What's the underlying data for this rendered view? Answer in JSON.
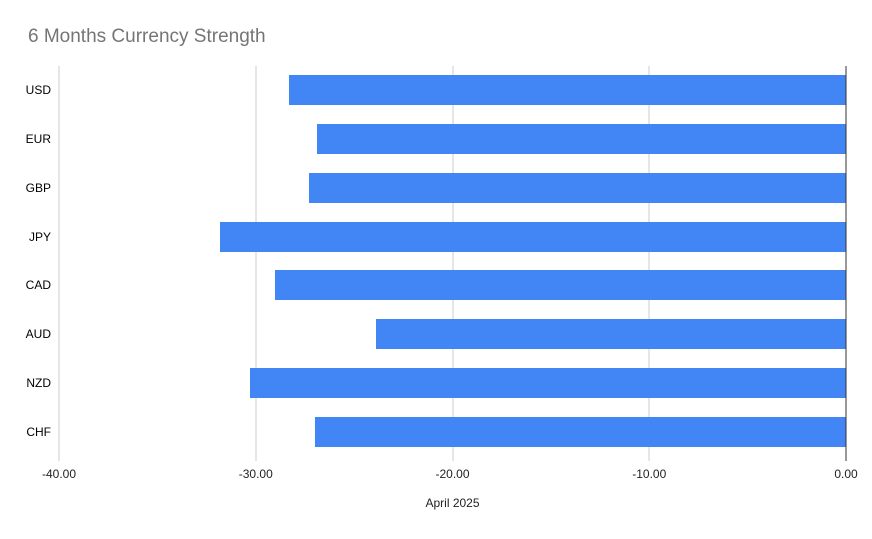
{
  "title": "6 Months Currency Strength",
  "colors": {
    "bar": "#4285f4",
    "title_text": "#757575",
    "gridline": "#cccccc",
    "zero_axis_line": "#333333",
    "axis_text": "#222222",
    "background": "#ffffff"
  },
  "chart_data": {
    "type": "bar",
    "orientation": "horizontal",
    "title": "6 Months Currency Strength",
    "categories": [
      "USD",
      "EUR",
      "GBP",
      "JPY",
      "CAD",
      "AUD",
      "NZD",
      "CHF"
    ],
    "values": [
      -28.3,
      -26.9,
      -27.3,
      -31.8,
      -29.0,
      -23.9,
      -30.3,
      -27.0
    ],
    "xlabel": "April 2025",
    "ylabel": "",
    "xlim": [
      -40,
      0
    ],
    "x_ticks": [
      -40,
      -30,
      -20,
      -10,
      0
    ],
    "x_tick_labels": [
      "-40.00",
      "-30.00",
      "-20.00",
      "-10.00",
      "0.00"
    ],
    "grid": true,
    "legend": "none",
    "bar_color": "#4285f4"
  }
}
